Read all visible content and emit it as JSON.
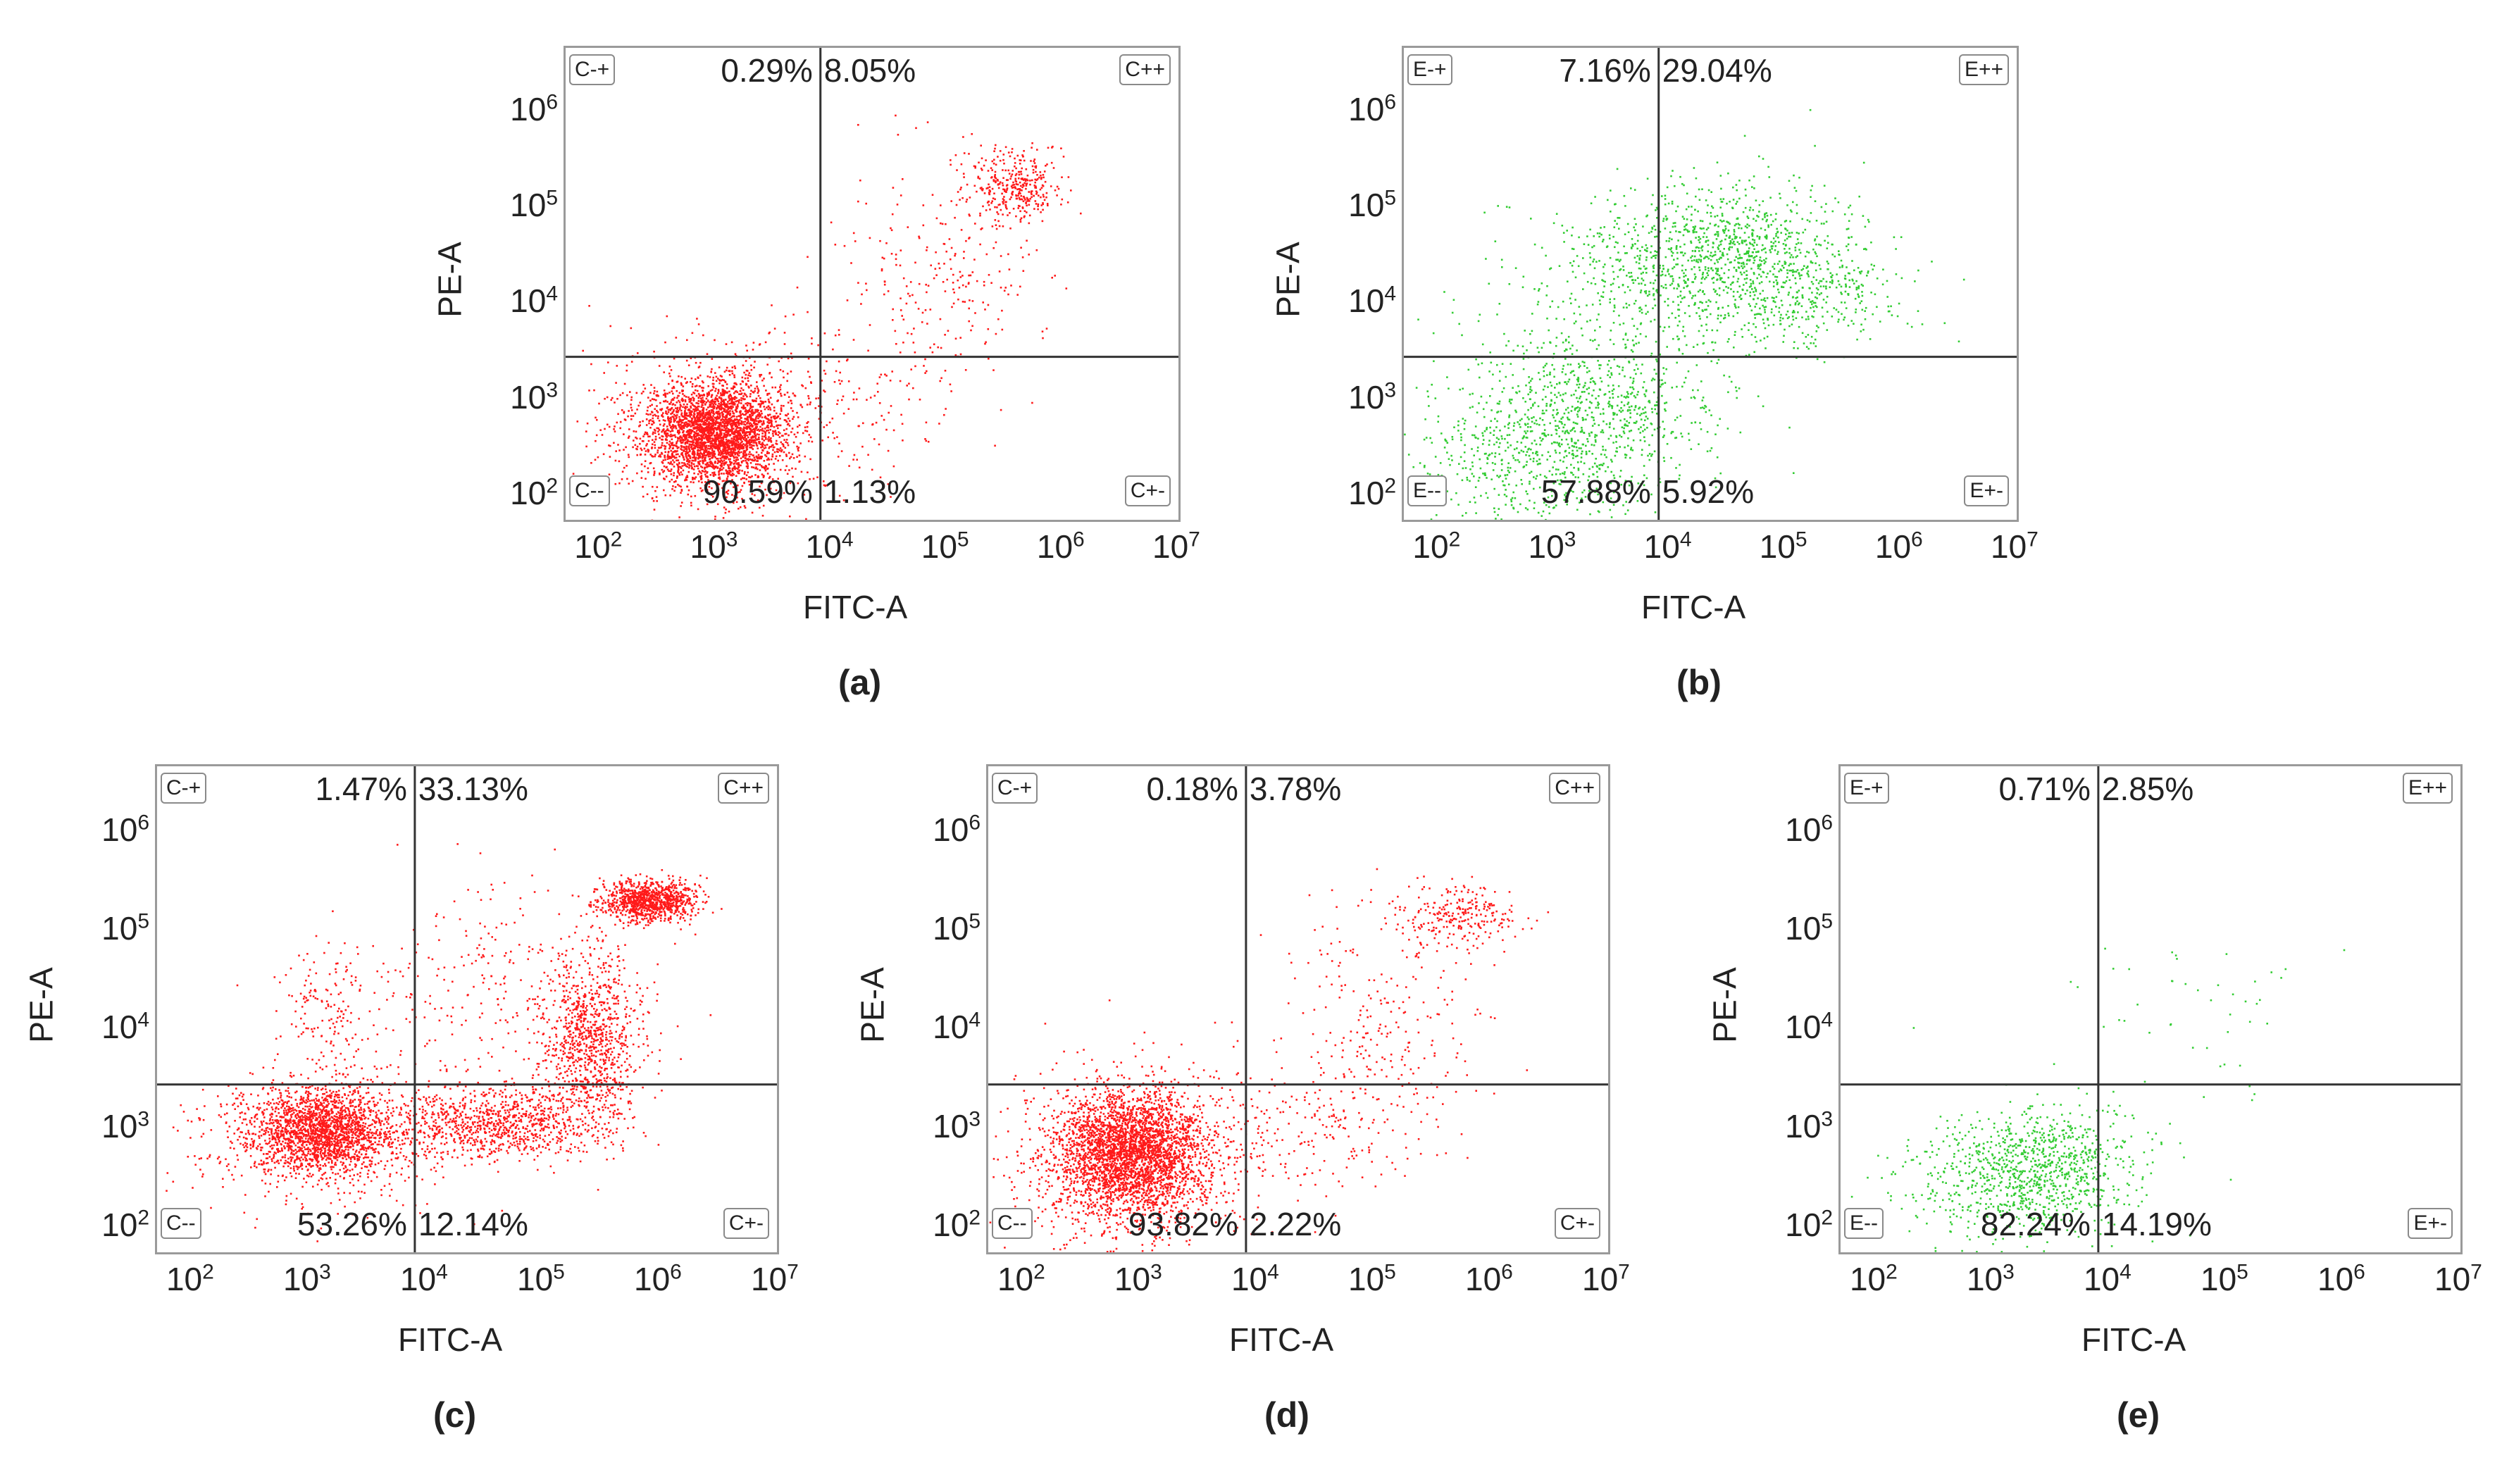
{
  "figure": {
    "colors": {
      "red": "#ff1a1a",
      "green": "#33cc33",
      "gate_line": "#333333",
      "frame": "#9a9a9a"
    }
  },
  "chart_data": [
    {
      "id": "a",
      "type": "scatter",
      "panel_label": "(a)",
      "xlabel": "FITC-A",
      "ylabel": "PE-A",
      "xscale": "log",
      "yscale": "log",
      "xlim": [
        50,
        10000000
      ],
      "ylim": [
        60,
        5000000
      ],
      "x_ticks": [
        {
          "base": "10",
          "exp": "2",
          "v": 100
        },
        {
          "base": "10",
          "exp": "3",
          "v": 1000
        },
        {
          "base": "10",
          "exp": "4",
          "v": 10000
        },
        {
          "base": "10",
          "exp": "5",
          "v": 100000
        },
        {
          "base": "10",
          "exp": "6",
          "v": 1000000
        },
        {
          "base": "10",
          "exp": "7",
          "v": 10000000
        }
      ],
      "y_ticks": [
        {
          "base": "10",
          "exp": "2",
          "v": 100
        },
        {
          "base": "10",
          "exp": "3",
          "v": 1000
        },
        {
          "base": "10",
          "exp": "4",
          "v": 10000
        },
        {
          "base": "10",
          "exp": "5",
          "v": 100000
        },
        {
          "base": "10",
          "exp": "6",
          "v": 1000000
        }
      ],
      "gate_x": 8000,
      "gate_y": 3000,
      "color": "red",
      "quadrants": {
        "ul": {
          "gate": "C-+",
          "pct": "0.29%"
        },
        "ur": {
          "gate": "C++",
          "pct": "8.05%"
        },
        "ll": {
          "gate": "C--",
          "pct": "90.59%"
        },
        "lr": {
          "gate": "C+-",
          "pct": "1.13%"
        }
      },
      "clusters": [
        {
          "cx": 3.0,
          "cy": 2.7,
          "sx": 0.28,
          "sy": 0.25,
          "n": 2600
        },
        {
          "cx": 3.0,
          "cy": 2.7,
          "sx": 0.55,
          "sy": 0.45,
          "n": 900
        },
        {
          "cx": 5.6,
          "cy": 5.25,
          "sx": 0.22,
          "sy": 0.18,
          "n": 350
        },
        {
          "cx": 4.9,
          "cy": 4.3,
          "sx": 0.45,
          "sy": 0.6,
          "n": 250
        },
        {
          "cx": 4.2,
          "cy": 3.0,
          "sx": 0.5,
          "sy": 0.35,
          "n": 80
        }
      ]
    },
    {
      "id": "b",
      "type": "scatter",
      "panel_label": "(b)",
      "xlabel": "FITC-A",
      "ylabel": "PE-A",
      "xscale": "log",
      "yscale": "log",
      "xlim": [
        50,
        10000000
      ],
      "ylim": [
        60,
        5000000
      ],
      "x_ticks": [
        {
          "base": "10",
          "exp": "2",
          "v": 100
        },
        {
          "base": "10",
          "exp": "3",
          "v": 1000
        },
        {
          "base": "10",
          "exp": "4",
          "v": 10000
        },
        {
          "base": "10",
          "exp": "5",
          "v": 100000
        },
        {
          "base": "10",
          "exp": "6",
          "v": 1000000
        },
        {
          "base": "10",
          "exp": "7",
          "v": 10000000
        }
      ],
      "y_ticks": [
        {
          "base": "10",
          "exp": "2",
          "v": 100
        },
        {
          "base": "10",
          "exp": "3",
          "v": 1000
        },
        {
          "base": "10",
          "exp": "4",
          "v": 10000
        },
        {
          "base": "10",
          "exp": "5",
          "v": 100000
        },
        {
          "base": "10",
          "exp": "6",
          "v": 1000000
        }
      ],
      "gate_x": 8000,
      "gate_y": 3000,
      "color": "green",
      "quadrants": {
        "ul": {
          "gate": "E-+",
          "pct": "7.16%"
        },
        "ur": {
          "gate": "E++",
          "pct": "29.04%"
        },
        "ll": {
          "gate": "E--",
          "pct": "57.88%"
        },
        "lr": {
          "gate": "E+-",
          "pct": "5.92%"
        }
      },
      "clusters": [
        {
          "cx": 3.3,
          "cy": 2.9,
          "sx": 0.55,
          "sy": 0.45,
          "n": 900
        },
        {
          "cx": 2.6,
          "cy": 2.3,
          "sx": 0.5,
          "sy": 0.4,
          "n": 350
        },
        {
          "cx": 4.5,
          "cy": 4.6,
          "sx": 0.55,
          "sy": 0.35,
          "n": 900
        },
        {
          "cx": 3.7,
          "cy": 4.3,
          "sx": 0.6,
          "sy": 0.4,
          "n": 350
        },
        {
          "cx": 5.2,
          "cy": 4.1,
          "sx": 0.4,
          "sy": 0.3,
          "n": 300
        }
      ]
    },
    {
      "id": "c",
      "type": "scatter",
      "panel_label": "(c)",
      "xlabel": "FITC-A",
      "ylabel": "PE-A",
      "xscale": "log",
      "yscale": "log",
      "xlim": [
        50,
        10000000
      ],
      "ylim": [
        60,
        5000000
      ],
      "x_ticks": [
        {
          "base": "10",
          "exp": "2",
          "v": 100
        },
        {
          "base": "10",
          "exp": "3",
          "v": 1000
        },
        {
          "base": "10",
          "exp": "4",
          "v": 10000
        },
        {
          "base": "10",
          "exp": "5",
          "v": 100000
        },
        {
          "base": "10",
          "exp": "6",
          "v": 1000000
        },
        {
          "base": "10",
          "exp": "7",
          "v": 10000000
        }
      ],
      "y_ticks": [
        {
          "base": "10",
          "exp": "2",
          "v": 100
        },
        {
          "base": "10",
          "exp": "3",
          "v": 1000
        },
        {
          "base": "10",
          "exp": "4",
          "v": 10000
        },
        {
          "base": "10",
          "exp": "5",
          "v": 100000
        },
        {
          "base": "10",
          "exp": "6",
          "v": 1000000
        }
      ],
      "gate_x": 8000,
      "gate_y": 3000,
      "color": "red",
      "quadrants": {
        "ul": {
          "gate": "C-+",
          "pct": "1.47%"
        },
        "ur": {
          "gate": "C++",
          "pct": "33.13%"
        },
        "ll": {
          "gate": "C--",
          "pct": "53.26%"
        },
        "lr": {
          "gate": "C+-",
          "pct": "12.14%"
        }
      },
      "clusters": [
        {
          "cx": 3.1,
          "cy": 3.0,
          "sx": 0.3,
          "sy": 0.22,
          "n": 1800
        },
        {
          "cx": 3.1,
          "cy": 3.0,
          "sx": 0.6,
          "sy": 0.35,
          "n": 600
        },
        {
          "cx": 4.6,
          "cy": 3.1,
          "sx": 0.45,
          "sy": 0.2,
          "n": 900
        },
        {
          "cx": 5.4,
          "cy": 3.9,
          "sx": 0.2,
          "sy": 0.45,
          "n": 900
        },
        {
          "cx": 5.9,
          "cy": 5.35,
          "sx": 0.2,
          "sy": 0.1,
          "n": 1000
        },
        {
          "cx": 4.8,
          "cy": 4.5,
          "sx": 0.6,
          "sy": 0.55,
          "n": 300
        },
        {
          "cx": 3.2,
          "cy": 4.3,
          "sx": 0.25,
          "sy": 0.3,
          "n": 150
        }
      ]
    },
    {
      "id": "d",
      "type": "scatter",
      "panel_label": "(d)",
      "xlabel": "FITC-A",
      "ylabel": "PE-A",
      "xscale": "log",
      "yscale": "log",
      "xlim": [
        50,
        10000000
      ],
      "ylim": [
        60,
        5000000
      ],
      "x_ticks": [
        {
          "base": "10",
          "exp": "2",
          "v": 100
        },
        {
          "base": "10",
          "exp": "3",
          "v": 1000
        },
        {
          "base": "10",
          "exp": "4",
          "v": 10000
        },
        {
          "base": "10",
          "exp": "5",
          "v": 100000
        },
        {
          "base": "10",
          "exp": "6",
          "v": 1000000
        },
        {
          "base": "10",
          "exp": "7",
          "v": 10000000
        }
      ],
      "y_ticks": [
        {
          "base": "10",
          "exp": "2",
          "v": 100
        },
        {
          "base": "10",
          "exp": "3",
          "v": 1000
        },
        {
          "base": "10",
          "exp": "4",
          "v": 10000
        },
        {
          "base": "10",
          "exp": "5",
          "v": 100000
        },
        {
          "base": "10",
          "exp": "6",
          "v": 1000000
        }
      ],
      "gate_x": 8000,
      "gate_y": 3000,
      "color": "red",
      "quadrants": {
        "ul": {
          "gate": "C-+",
          "pct": "0.18%"
        },
        "ur": {
          "gate": "C++",
          "pct": "3.78%"
        },
        "ll": {
          "gate": "C--",
          "pct": "93.82%"
        },
        "lr": {
          "gate": "C+-",
          "pct": "2.22%"
        }
      },
      "clusters": [
        {
          "cx": 2.9,
          "cy": 2.8,
          "sx": 0.3,
          "sy": 0.3,
          "n": 2800
        },
        {
          "cx": 2.9,
          "cy": 2.7,
          "sx": 0.55,
          "sy": 0.5,
          "n": 900
        },
        {
          "cx": 5.7,
          "cy": 5.2,
          "sx": 0.25,
          "sy": 0.15,
          "n": 250
        },
        {
          "cx": 5.1,
          "cy": 4.0,
          "sx": 0.45,
          "sy": 0.6,
          "n": 250
        },
        {
          "cx": 4.3,
          "cy": 3.1,
          "sx": 0.5,
          "sy": 0.35,
          "n": 200
        }
      ]
    },
    {
      "id": "e",
      "type": "scatter",
      "panel_label": "(e)",
      "xlabel": "FITC-A",
      "ylabel": "PE-A",
      "xscale": "log",
      "yscale": "log",
      "xlim": [
        50,
        10000000
      ],
      "ylim": [
        60,
        5000000
      ],
      "x_ticks": [
        {
          "base": "10",
          "exp": "2",
          "v": 100
        },
        {
          "base": "10",
          "exp": "3",
          "v": 1000
        },
        {
          "base": "10",
          "exp": "4",
          "v": 10000
        },
        {
          "base": "10",
          "exp": "5",
          "v": 100000
        },
        {
          "base": "10",
          "exp": "6",
          "v": 1000000
        },
        {
          "base": "10",
          "exp": "7",
          "v": 10000000
        }
      ],
      "y_ticks": [
        {
          "base": "10",
          "exp": "2",
          "v": 100
        },
        {
          "base": "10",
          "exp": "3",
          "v": 1000
        },
        {
          "base": "10",
          "exp": "4",
          "v": 10000
        },
        {
          "base": "10",
          "exp": "5",
          "v": 100000
        },
        {
          "base": "10",
          "exp": "6",
          "v": 1000000
        }
      ],
      "gate_x": 8000,
      "gate_y": 3000,
      "color": "green",
      "quadrants": {
        "ul": {
          "gate": "E-+",
          "pct": "0.71%"
        },
        "ur": {
          "gate": "E++",
          "pct": "2.85%"
        },
        "ll": {
          "gate": "E--",
          "pct": "82.24%"
        },
        "lr": {
          "gate": "E+-",
          "pct": "14.19%"
        }
      },
      "clusters": [
        {
          "cx": 3.45,
          "cy": 2.65,
          "sx": 0.4,
          "sy": 0.3,
          "n": 700
        },
        {
          "cx": 3.0,
          "cy": 2.5,
          "sx": 0.5,
          "sy": 0.35,
          "n": 350
        },
        {
          "cx": 5.0,
          "cy": 4.4,
          "sx": 0.4,
          "sy": 0.25,
          "n": 25
        },
        {
          "cx": 4.3,
          "cy": 3.6,
          "sx": 0.8,
          "sy": 0.6,
          "n": 25
        }
      ]
    }
  ]
}
